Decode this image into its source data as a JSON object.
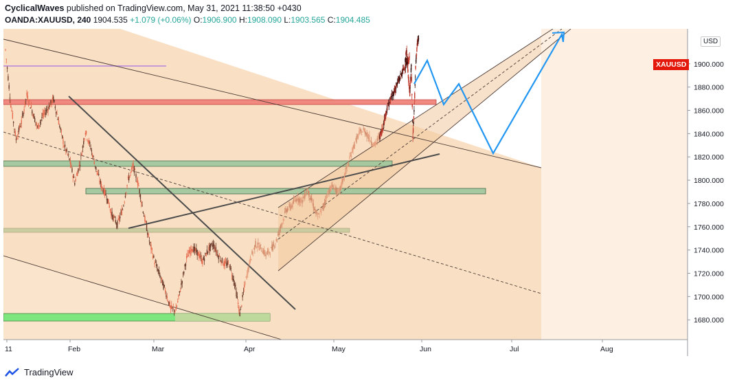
{
  "header": {
    "publisher": "CyclicalWaves",
    "published_text": "published on TradingView.com, May 31, 2021 11:38:50 +0430",
    "symbol": "OANDA:XAUUSD, 240",
    "last": "1904.535",
    "change": "+1.079 (+0.06%)",
    "o_label": "O:",
    "o_val": "1906.900",
    "h_label": "H:",
    "h_val": "1908.090",
    "l_label": "L:",
    "l_val": "1903.565",
    "c_label": "C:",
    "c_val": "1904.485"
  },
  "price_axis": {
    "currency": "USD",
    "symbol_badge": "XAUUSD"
  },
  "footer": {
    "brand": "TradingView"
  },
  "colors": {
    "bg": "#ffffff",
    "channel_fill": "#f6d6b3",
    "candle_up": "#e66b4f",
    "candle_down": "#6b3a2a",
    "forecast": "#2196f3",
    "resistance": "#f08080",
    "support": "#8fbc8f",
    "strong_support": "#7ee67e"
  },
  "chart_data": {
    "type": "line",
    "title": "",
    "ylabel": "",
    "xlabel": "",
    "ylim": [
      1663,
      1930
    ],
    "y_ticks": [
      1680,
      1700,
      1720,
      1740,
      1760,
      1780,
      1800,
      1820,
      1840,
      1860,
      1880,
      1900
    ],
    "y_tick_labels": [
      "1680.000",
      "1700.000",
      "1720.000",
      "1740.000",
      "1760.000",
      "1780.000",
      "1800.000",
      "1820.000",
      "1840.000",
      "1860.000",
      "1880.000",
      "1900.000"
    ],
    "x_labels": [
      "11",
      "Feb",
      "Mar",
      "Apr",
      "May",
      "Jun",
      "Jul",
      "Aug"
    ],
    "grid": false,
    "series": [
      {
        "values": [
          1912,
          1865,
          1835,
          1850,
          1873,
          1860,
          1845,
          1855,
          1862,
          1870,
          1850,
          1830,
          1818,
          1798,
          1815,
          1842,
          1828,
          1810,
          1795,
          1786,
          1770,
          1762,
          1775,
          1800,
          1812,
          1795,
          1770,
          1748,
          1730,
          1718,
          1705,
          1690,
          1688,
          1710,
          1733,
          1742,
          1738,
          1730,
          1740,
          1745,
          1735,
          1728,
          1728,
          1712,
          1685,
          1712,
          1732,
          1745,
          1742,
          1736,
          1740,
          1748,
          1762,
          1775,
          1778,
          1785,
          1782,
          1792,
          1780,
          1768,
          1776,
          1790,
          1795,
          1788,
          1802,
          1815,
          1830,
          1840,
          1843,
          1836,
          1830,
          1838,
          1845,
          1858,
          1866,
          1872,
          1878,
          1884,
          1890,
          1896,
          1902,
          1904
        ]
      },
      {
        "name": "",
        "values": [
          1904,
          1911,
          1888,
          1875,
          1898,
          1838,
          1865,
          1903,
          1918,
          1922
        ]
      }
    ]
  }
}
